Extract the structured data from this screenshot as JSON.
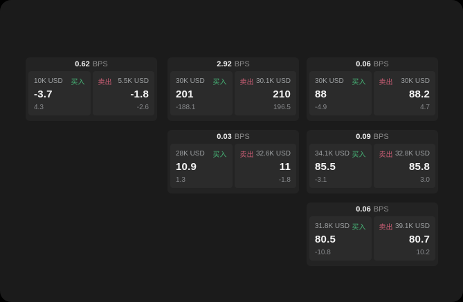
{
  "labels": {
    "bps_unit": "BPS",
    "buy": "买入",
    "sell": "卖出"
  },
  "colors": {
    "page_bg": "#1b1b1b",
    "card_bg": "#232323",
    "pane_bg": "#2b2b2b",
    "buy_accent": "#46b275",
    "sell_accent": "#c75c73"
  },
  "cards": [
    {
      "bps": "0.62",
      "buy": {
        "size": "10K USD",
        "value": "-3.7",
        "delta": "4.3"
      },
      "sell": {
        "size": "5.5K USD",
        "value": "-1.8",
        "delta": "-2.6"
      }
    },
    {
      "bps": "2.92",
      "buy": {
        "size": "30K USD",
        "value": "201",
        "delta": "-188.1"
      },
      "sell": {
        "size": "30.1K USD",
        "value": "210",
        "delta": "196.5"
      }
    },
    {
      "bps": "0.03",
      "buy": {
        "size": "28K USD",
        "value": "10.9",
        "delta": "1.3"
      },
      "sell": {
        "size": "32.6K USD",
        "value": "11",
        "delta": "-1.8"
      }
    },
    {
      "bps": "0.06",
      "buy": {
        "size": "30K USD",
        "value": "88",
        "delta": "-4.9"
      },
      "sell": {
        "size": "30K USD",
        "value": "88.2",
        "delta": "4.7"
      }
    },
    {
      "bps": "0.09",
      "buy": {
        "size": "34.1K USD",
        "value": "85.5",
        "delta": "-3.1"
      },
      "sell": {
        "size": "32.8K USD",
        "value": "85.8",
        "delta": "3.0"
      }
    },
    {
      "bps": "0.06",
      "buy": {
        "size": "31.8K USD",
        "value": "80.5",
        "delta": "-10.8"
      },
      "sell": {
        "size": "39.1K USD",
        "value": "80.7",
        "delta": "10.2"
      }
    }
  ]
}
